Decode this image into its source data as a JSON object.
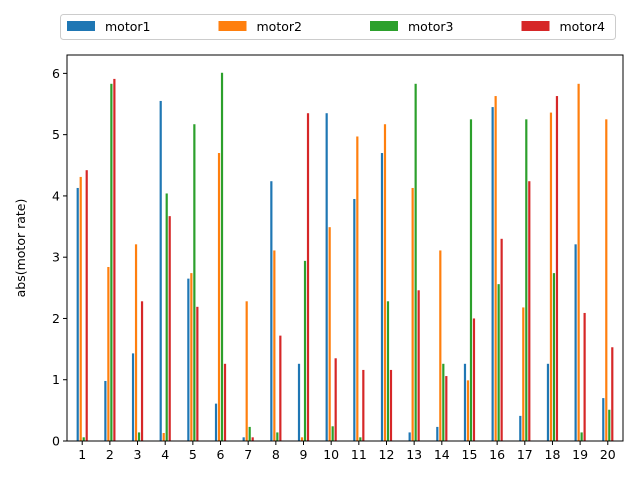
{
  "chart_data": {
    "type": "bar",
    "title": "",
    "xlabel": "",
    "ylabel": "abs(motor rate)",
    "ylim": [
      0,
      6.3
    ],
    "yticks": [
      0,
      1,
      2,
      3,
      4,
      5,
      6
    ],
    "grid": false,
    "legend_placement": "top, above plot, single row",
    "categories": [
      "1",
      "2",
      "3",
      "4",
      "5",
      "6",
      "7",
      "8",
      "9",
      "10",
      "11",
      "12",
      "13",
      "14",
      "15",
      "16",
      "17",
      "18",
      "19",
      "20"
    ],
    "series": [
      {
        "name": "motor1",
        "color": "#1f77b4",
        "values": [
          4.13,
          0.98,
          1.43,
          5.55,
          2.65,
          0.61,
          0.06,
          4.24,
          1.26,
          5.35,
          3.95,
          4.7,
          0.14,
          0.23,
          1.26,
          5.45,
          0.41,
          1.26,
          3.21,
          0.7
        ]
      },
      {
        "name": "motor2",
        "color": "#ff7f0e",
        "values": [
          4.31,
          2.84,
          3.21,
          0.13,
          2.74,
          4.7,
          2.28,
          3.11,
          0.06,
          3.49,
          4.97,
          5.17,
          4.13,
          3.11,
          0.99,
          5.63,
          2.18,
          5.36,
          5.83,
          5.25
        ]
      },
      {
        "name": "motor3",
        "color": "#2ca02c",
        "values": [
          0.06,
          5.83,
          0.14,
          4.04,
          5.17,
          6.01,
          0.23,
          0.14,
          2.94,
          0.24,
          0.06,
          2.28,
          5.83,
          1.26,
          5.25,
          2.56,
          5.25,
          2.74,
          0.14,
          0.51
        ]
      },
      {
        "name": "motor4",
        "color": "#d62728",
        "values": [
          4.42,
          5.91,
          2.28,
          3.67,
          2.19,
          1.26,
          0.06,
          1.72,
          5.35,
          1.35,
          1.16,
          1.16,
          2.46,
          1.06,
          2.0,
          3.3,
          4.24,
          5.63,
          2.09,
          1.53
        ]
      }
    ]
  }
}
